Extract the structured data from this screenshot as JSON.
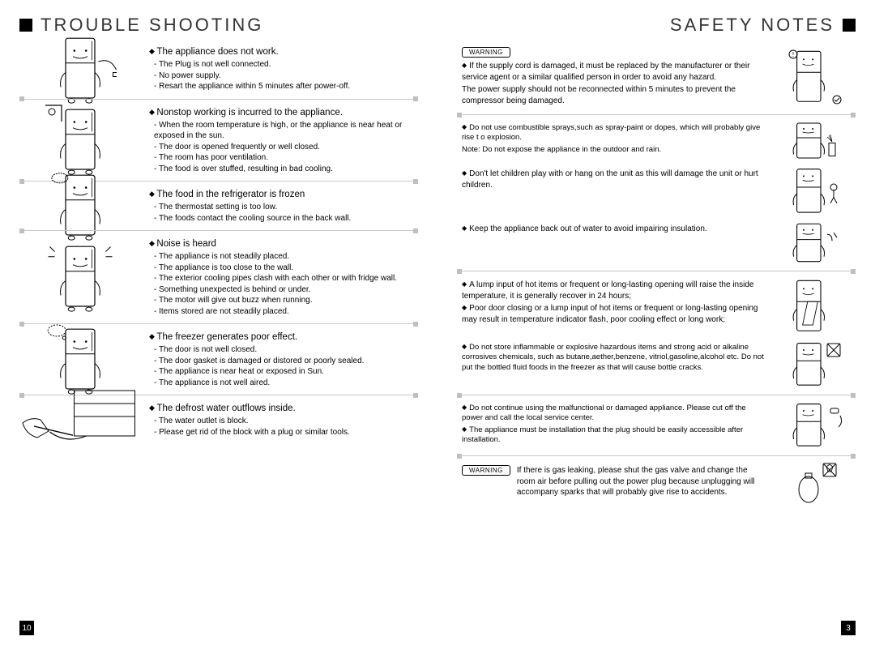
{
  "left": {
    "title": "TROUBLE SHOOTING",
    "page_number": "10",
    "items": [
      {
        "title": "The appliance does not work.",
        "causes": [
          "The Plug is not well connected.",
          "No power supply.",
          "Resart the appliance within 5 minutes after power-off."
        ]
      },
      {
        "title": "Nonstop working is incurred to the appliance.",
        "causes": [
          "When the room temperature is high, or the appliance is near heat or exposed in the sun.",
          "The door is opened frequently or well closed.",
          "The room has poor ventilation.",
          "The food is over stuffed, resulting in bad cooling."
        ]
      },
      {
        "title": "The food in the refrigerator is frozen",
        "causes": [
          "The thermostat setting is too low.",
          "The foods contact the cooling source in the back wall."
        ]
      },
      {
        "title": "Noise is heard",
        "causes": [
          "The appliance is not steadily placed.",
          "The appliance is too close to the wall.",
          "The exterior cooling pipes clash with each other or with fridge wall.",
          "Something unexpected is behind or under.",
          "The motor will give out buzz when running.",
          "Items stored are not steadily placed."
        ]
      },
      {
        "title": "The freezer generates poor effect.",
        "causes": [
          "The door is not well closed.",
          "The door gasket is damaged or distored or poorly sealed.",
          "The appliance is near heat or exposed in Sun.",
          "The appliance is not well aired."
        ]
      },
      {
        "title": "The defrost water outflows inside.",
        "causes": [
          "The water outlet is block.",
          "Please get rid of the block with a plug or similar tools."
        ]
      }
    ]
  },
  "right": {
    "title": "SAFETY NOTES",
    "page_number": "3",
    "warning_label": "WARNING",
    "sections": [
      {
        "warn": true,
        "lines": [
          "If the supply cord is damaged, it must be replaced by the manufacturer or their service agent or a similar qualified person in order to avoid any hazard.",
          "The power supply should not be reconnected within 5 minutes to prevent the compressor being damaged."
        ],
        "diamond_first": true
      },
      {
        "lines": [
          "Do not use combustible sprays,such as spray-paint or dopes, which will probably give rise t o explosion.",
          "Note: Do not expose the appliance in the outdoor and rain."
        ],
        "diamond_first": true,
        "small": true
      },
      {
        "lines": [
          "Don't let children play with or hang on the unit as this will damage the unit or hurt children."
        ],
        "diamond_first": true
      },
      {
        "lines": [
          "Keep the appliance back out of water to avoid impairing insulation."
        ],
        "diamond_first": true
      },
      {
        "lines": [
          "A lump input of hot items  or frequent or long-lasting opening will raise the inside temperature,  it is generally recover in 24 hours;",
          "Poor door closing or a lump input of hot items or frequent or long-lasting opening may result in temperature indicator flash, poor cooling effect or long work;"
        ],
        "diamond_all": true
      },
      {
        "lines": [
          "Do not store inflammable or explosive hazardous items and strong acid or alkaline corrosives chemicals, such as butane,aether,benzene, vitriol,gasoline,alcohol etc. Do not put the bottled fluid foods in the freezer as that will cause bottle cracks."
        ],
        "diamond_first": true,
        "small": true
      },
      {
        "lines": [
          "Do not continue using the malfunctional or damaged appliance. Please cut off the power and call the local service center.",
          "The appliance must be installation that the plug should be easily accessible after installation."
        ],
        "diamond_all": true,
        "small": true
      }
    ],
    "bottom_warning": "If there is gas leaking, please shut the gas valve and change the room air before pulling out the power plug because unplugging will accompany sparks that will probably give rise to accidents."
  },
  "colors": {
    "sep_line": "#c8c8c8",
    "sep_cap": "#bfbfbf",
    "text": "#000000",
    "bg": "#ffffff"
  }
}
